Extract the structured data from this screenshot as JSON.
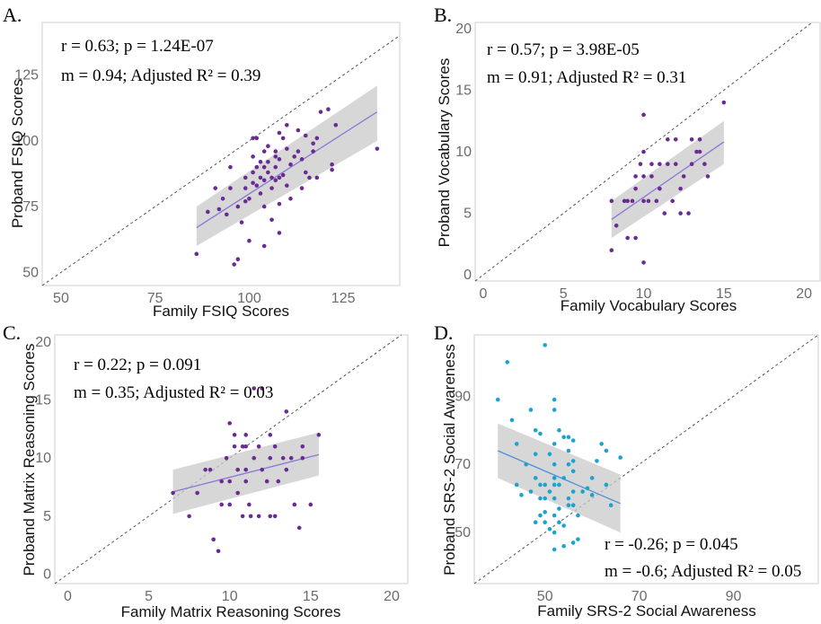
{
  "chart_data": [
    {
      "panel": "A.",
      "type": "scatter",
      "xlabel": "Family FSIQ Scores",
      "ylabel": "Proband FSIQ Scores",
      "xlim": [
        45,
        140
      ],
      "ylim": [
        45,
        145
      ],
      "xticks": [
        "50",
        "75",
        "100",
        "125"
      ],
      "yticks": [
        "50",
        "75",
        "100",
        "125"
      ],
      "stat_line1": "r = 0.63; p = 1.24E-07",
      "stat_line2": "m = 0.94; Adjusted R² = 0.39",
      "color": "#6a2c91",
      "fit_color": "#8a78d6",
      "fit": {
        "x": [
          86,
          134
        ],
        "y": [
          67,
          111
        ],
        "ci_lower": [
          60,
          100
        ],
        "ci_upper": [
          75,
          121
        ]
      },
      "points": [
        [
          86,
          57
        ],
        [
          89,
          73
        ],
        [
          91,
          82
        ],
        [
          92,
          74
        ],
        [
          93,
          78
        ],
        [
          94,
          72
        ],
        [
          95,
          90
        ],
        [
          95,
          82
        ],
        [
          96,
          53
        ],
        [
          97,
          55
        ],
        [
          97,
          75
        ],
        [
          98,
          69
        ],
        [
          99,
          86
        ],
        [
          99,
          82
        ],
        [
          99,
          77
        ],
        [
          100,
          78
        ],
        [
          100,
          62
        ],
        [
          101,
          101
        ],
        [
          101,
          94
        ],
        [
          101,
          88
        ],
        [
          101,
          84
        ],
        [
          102,
          101
        ],
        [
          102,
          90
        ],
        [
          102,
          83
        ],
        [
          103,
          92
        ],
        [
          103,
          86
        ],
        [
          103,
          80
        ],
        [
          104,
          96
        ],
        [
          104,
          90
        ],
        [
          104,
          85
        ],
        [
          104,
          75
        ],
        [
          104,
          60
        ],
        [
          105,
          98
        ],
        [
          105,
          92
        ],
        [
          105,
          88
        ],
        [
          106,
          86
        ],
        [
          106,
          82
        ],
        [
          106,
          70
        ],
        [
          107,
          96
        ],
        [
          107,
          94
        ],
        [
          107,
          90
        ],
        [
          107,
          85
        ],
        [
          108,
          103
        ],
        [
          108,
          93
        ],
        [
          108,
          86
        ],
        [
          108,
          76
        ],
        [
          108,
          65
        ],
        [
          109,
          101
        ],
        [
          109,
          87
        ],
        [
          110,
          106
        ],
        [
          110,
          97
        ],
        [
          110,
          83
        ],
        [
          111,
          91
        ],
        [
          111,
          78
        ],
        [
          112,
          94
        ],
        [
          113,
          104
        ],
        [
          113,
          96
        ],
        [
          114,
          93
        ],
        [
          114,
          82
        ],
        [
          115,
          102
        ],
        [
          115,
          88
        ],
        [
          116,
          86
        ],
        [
          117,
          99
        ],
        [
          117,
          96
        ],
        [
          118,
          101
        ],
        [
          118,
          86
        ],
        [
          119,
          111
        ],
        [
          121,
          112
        ],
        [
          122,
          91
        ],
        [
          122,
          89
        ],
        [
          123,
          106
        ],
        [
          134,
          97
        ]
      ]
    },
    {
      "panel": "B.",
      "type": "scatter",
      "xlabel": "Family Vocabulary Scores",
      "ylabel": "Proband Vocabulary Scores",
      "xlim": [
        -0.5,
        21
      ],
      "ylim": [
        -0.5,
        20.5
      ],
      "xticks": [
        "0",
        "5",
        "10",
        "15",
        "20"
      ],
      "yticks": [
        "0",
        "5",
        "10",
        "15",
        "20"
      ],
      "stat_line1": "r = 0.57; p = 3.98E-05",
      "stat_line2": "m = 0.91; Adjusted R² = 0.31",
      "color": "#6a2c91",
      "fit_color": "#8a78d6",
      "fit": {
        "x": [
          8,
          15
        ],
        "y": [
          4.5,
          10.8
        ],
        "ci_lower": [
          3,
          9
        ],
        "ci_upper": [
          6,
          12.5
        ]
      },
      "points": [
        [
          8,
          6
        ],
        [
          8,
          2
        ],
        [
          8.3,
          4
        ],
        [
          8.8,
          6
        ],
        [
          9,
          3
        ],
        [
          9,
          6
        ],
        [
          9.3,
          6
        ],
        [
          9.5,
          8
        ],
        [
          9.5,
          3
        ],
        [
          9.5,
          7
        ],
        [
          9.8,
          9
        ],
        [
          10,
          13
        ],
        [
          10,
          10
        ],
        [
          10,
          8
        ],
        [
          10,
          6
        ],
        [
          10,
          1
        ],
        [
          10.3,
          6
        ],
        [
          10.5,
          9
        ],
        [
          10.5,
          8
        ],
        [
          10.8,
          6
        ],
        [
          11,
          7
        ],
        [
          11,
          9
        ],
        [
          11.3,
          5
        ],
        [
          11.5,
          11
        ],
        [
          11.5,
          9
        ],
        [
          11.8,
          6
        ],
        [
          12,
          11
        ],
        [
          12,
          9
        ],
        [
          12.3,
          7
        ],
        [
          12.3,
          5
        ],
        [
          12.5,
          8
        ],
        [
          12.8,
          5
        ],
        [
          13,
          11
        ],
        [
          13,
          9
        ],
        [
          13.3,
          10
        ],
        [
          13.5,
          11
        ],
        [
          13.5,
          10
        ],
        [
          13.8,
          9
        ],
        [
          14,
          8
        ],
        [
          15,
          14
        ]
      ]
    },
    {
      "panel": "C.",
      "type": "scatter",
      "xlabel": "Family Matrix Reasoning Scores",
      "ylabel": "Proband Matrix Reasoning Scores",
      "xlim": [
        -0.8,
        21
      ],
      "ylim": [
        -0.8,
        20.6
      ],
      "xticks": [
        "0",
        "5",
        "10",
        "15",
        "20"
      ],
      "yticks": [
        "0",
        "5",
        "10",
        "15",
        "20"
      ],
      "stat_line1": "r = 0.22; p = 0.091",
      "stat_line2": "m = 0.35; Adjusted R² = 0.03",
      "color": "#6a2c91",
      "fit_color": "#8a78d6",
      "fit": {
        "x": [
          6.5,
          15.5
        ],
        "y": [
          7.1,
          10.3
        ],
        "ci_lower": [
          5.2,
          8.5
        ],
        "ci_upper": [
          9.0,
          12.2
        ]
      },
      "points": [
        [
          6.5,
          7
        ],
        [
          7.5,
          5
        ],
        [
          8,
          7
        ],
        [
          8.5,
          9
        ],
        [
          8.8,
          9
        ],
        [
          9,
          3
        ],
        [
          9.3,
          2
        ],
        [
          9.5,
          6
        ],
        [
          9.5,
          8
        ],
        [
          9.8,
          10
        ],
        [
          10,
          13
        ],
        [
          10,
          8
        ],
        [
          10,
          6
        ],
        [
          10.3,
          11
        ],
        [
          10.3,
          12
        ],
        [
          10.5,
          9
        ],
        [
          10.5,
          7
        ],
        [
          10.8,
          11
        ],
        [
          10.8,
          5
        ],
        [
          11,
          12
        ],
        [
          11,
          11
        ],
        [
          11,
          9
        ],
        [
          11,
          8
        ],
        [
          11.2,
          6
        ],
        [
          11.3,
          5
        ],
        [
          11.5,
          10
        ],
        [
          11.5,
          16
        ],
        [
          11.8,
          11
        ],
        [
          11.8,
          5
        ],
        [
          12,
          16
        ],
        [
          12,
          9
        ],
        [
          12.3,
          8
        ],
        [
          12.5,
          12
        ],
        [
          12.5,
          10
        ],
        [
          12.5,
          5
        ],
        [
          12.8,
          11
        ],
        [
          12.8,
          5
        ],
        [
          13,
          8
        ],
        [
          13.3,
          10
        ],
        [
          13.5,
          14
        ],
        [
          13.5,
          9
        ],
        [
          13.8,
          10
        ],
        [
          14,
          6
        ],
        [
          14.3,
          4
        ],
        [
          14.5,
          11
        ],
        [
          14.5,
          10
        ],
        [
          15,
          6
        ],
        [
          15.5,
          12
        ]
      ]
    },
    {
      "panel": "D.",
      "type": "scatter",
      "xlabel": "Family SRS-2 Social Awareness",
      "ylabel": "Proband SRS-2 Social Awareness",
      "xlim": [
        35,
        108
      ],
      "ylim": [
        35,
        108
      ],
      "xticks": [
        "50",
        "70",
        "90"
      ],
      "yticks": [
        "50",
        "70",
        "90"
      ],
      "stat_line1": "r = -0.26; p = 0.045",
      "stat_line2": "m = -0.6; Adjusted R² = 0.05",
      "color": "#1ba3cf",
      "fit_color": "#4a90d9",
      "fit": {
        "x": [
          40,
          66
        ],
        "y": [
          74,
          58.5
        ],
        "ci_lower": [
          66,
          50
        ],
        "ci_upper": [
          82,
          67
        ]
      },
      "points": [
        [
          40,
          89
        ],
        [
          42,
          100
        ],
        [
          43,
          83
        ],
        [
          44,
          76
        ],
        [
          44,
          64
        ],
        [
          45,
          61
        ],
        [
          46,
          70
        ],
        [
          47,
          86
        ],
        [
          47,
          62
        ],
        [
          48,
          80
        ],
        [
          48,
          73
        ],
        [
          48,
          66
        ],
        [
          48,
          53
        ],
        [
          49,
          79
        ],
        [
          49,
          64
        ],
        [
          49,
          60
        ],
        [
          49,
          55
        ],
        [
          50,
          105
        ],
        [
          50,
          64
        ],
        [
          50,
          60
        ],
        [
          50,
          56
        ],
        [
          50,
          53
        ],
        [
          51,
          73
        ],
        [
          51,
          62
        ],
        [
          51,
          51
        ],
        [
          52,
          89
        ],
        [
          52,
          86
        ],
        [
          52,
          76
        ],
        [
          52,
          70
        ],
        [
          52,
          66
        ],
        [
          52,
          64
        ],
        [
          52,
          60
        ],
        [
          52,
          55
        ],
        [
          52,
          50
        ],
        [
          52,
          45
        ],
        [
          53,
          80
        ],
        [
          53,
          64
        ],
        [
          53,
          57
        ],
        [
          53,
          53
        ],
        [
          54,
          78
        ],
        [
          54,
          66
        ],
        [
          54,
          52
        ],
        [
          54,
          46
        ],
        [
          55,
          78
        ],
        [
          55,
          74
        ],
        [
          55,
          70
        ],
        [
          55,
          60
        ],
        [
          55,
          58
        ],
        [
          56,
          77
        ],
        [
          56,
          71
        ],
        [
          56,
          68
        ],
        [
          56,
          62
        ],
        [
          56,
          58
        ],
        [
          56,
          47
        ],
        [
          57,
          55
        ],
        [
          57,
          48
        ],
        [
          58,
          62
        ],
        [
          59,
          63
        ],
        [
          60,
          66
        ],
        [
          60,
          61
        ],
        [
          61,
          71
        ],
        [
          62,
          76
        ],
        [
          63,
          74
        ],
        [
          63,
          64
        ],
        [
          64,
          58
        ],
        [
          66,
          72
        ]
      ]
    }
  ]
}
